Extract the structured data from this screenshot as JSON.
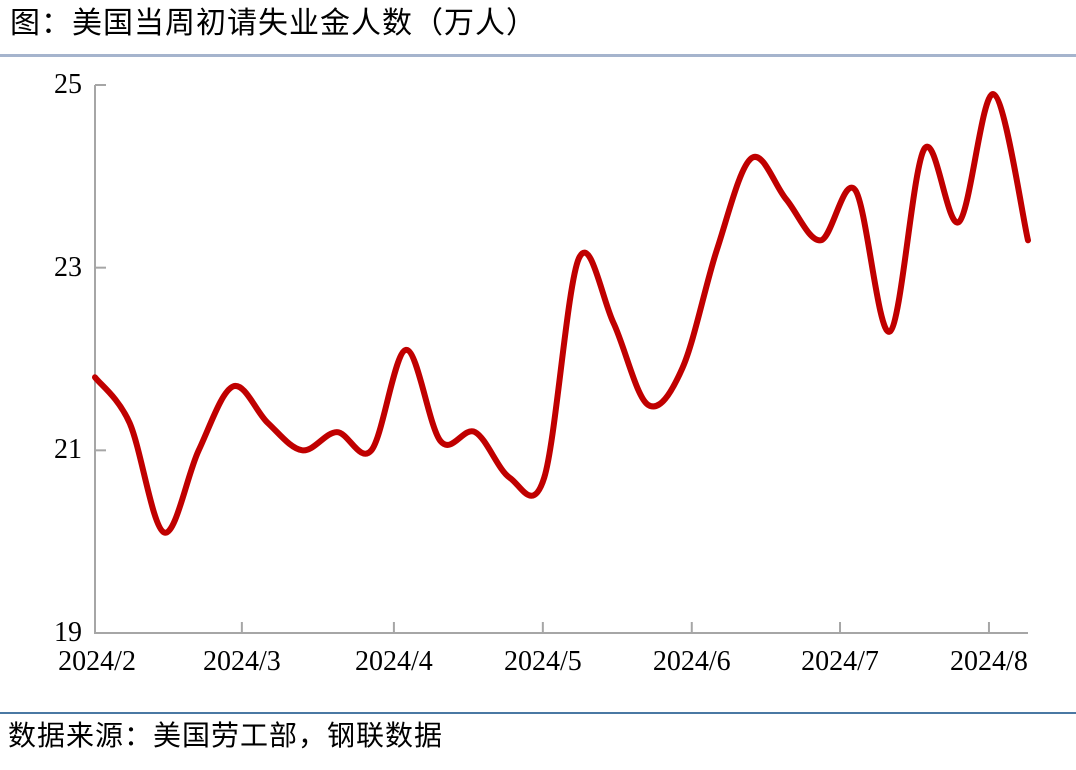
{
  "page": {
    "title": "图：美国当周初请失业金人数（万人）",
    "source": "数据来源：美国劳工部，钢联数据",
    "colors": {
      "background": "#FFFFFF",
      "text": "#000000",
      "line": "#C00000",
      "axis": "#A6A6A6",
      "top_rule": "#A5B4CD",
      "bottom_rule": "#4A78A3"
    }
  },
  "chart_data": {
    "type": "line",
    "title": "图：美国当周初请失业金人数（万人）",
    "xlabel": "",
    "ylabel": "",
    "unit": "万人",
    "ylim": [
      19,
      25
    ],
    "y_ticks": [
      19,
      21,
      23,
      25
    ],
    "x_tick_labels": [
      "2024/2",
      "2024/3",
      "2024/4",
      "2024/5",
      "2024/6",
      "2024/7",
      "2024/8"
    ],
    "x_tick_positions": [
      0.06,
      4.25,
      8.65,
      12.96,
      17.27,
      21.56,
      25.87
    ],
    "grid": "off",
    "legend": "none",
    "smooth": true,
    "series": [
      {
        "name": "美国当周初请失业金人数",
        "color": "#C00000",
        "x_unit": "week_index_0_to_27",
        "values": [
          21.8,
          21.3,
          20.1,
          21.0,
          21.7,
          21.3,
          21.0,
          21.2,
          21.0,
          22.1,
          21.1,
          21.2,
          20.7,
          20.7,
          23.1,
          22.4,
          21.5,
          21.9,
          23.2,
          24.2,
          23.75,
          23.3,
          23.85,
          22.3,
          24.3,
          23.5,
          24.9,
          23.3
        ]
      }
    ]
  }
}
